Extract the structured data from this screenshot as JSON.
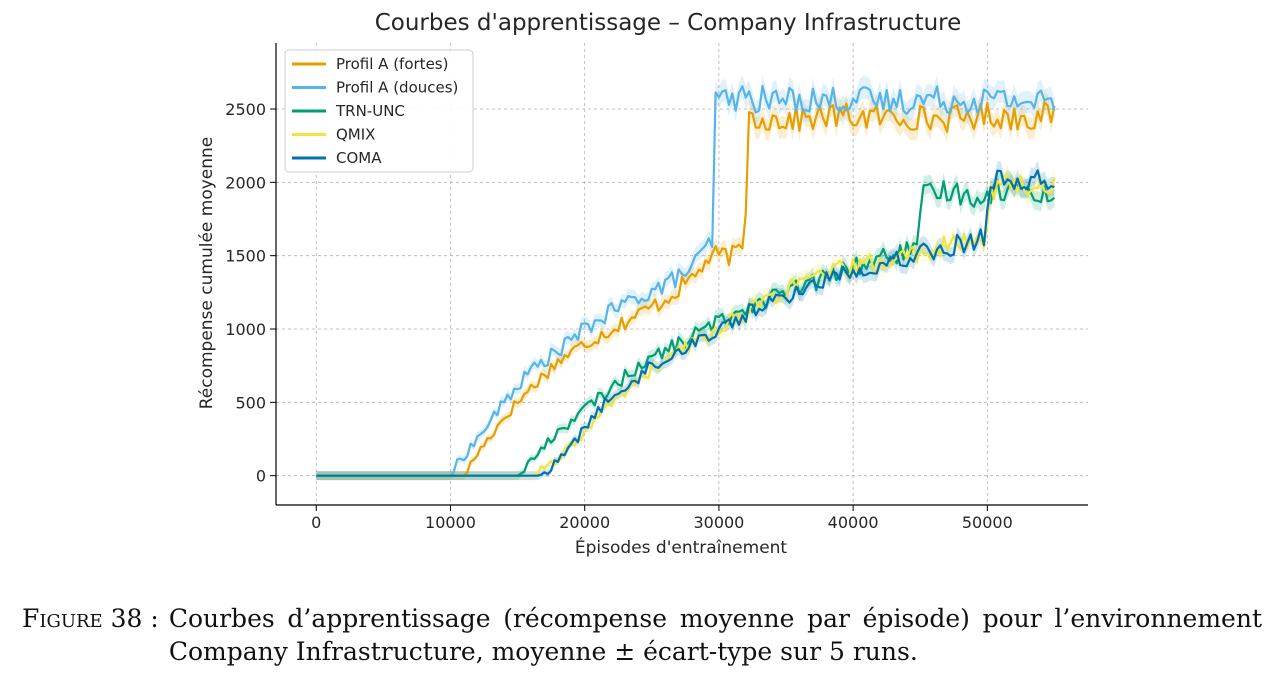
{
  "chart_data": {
    "type": "line",
    "title": "Courbes d'apprentissage – Company Infrastructure",
    "xlabel": "Épisodes d'entraînement",
    "ylabel": "Récompense cumulée moyenne",
    "xlim": [
      -3000,
      57500
    ],
    "ylim": [
      -200,
      2950
    ],
    "xticks": [
      0,
      10000,
      20000,
      30000,
      40000,
      50000
    ],
    "yticks": [
      0,
      500,
      1000,
      1500,
      2000,
      2500
    ],
    "grid": true,
    "legend_position": "top-left",
    "series": [
      {
        "name": "Profil A (fortes)",
        "color": "#E69F00",
        "x": [
          0,
          10000,
          11000,
          12000,
          14000,
          16000,
          18000,
          20000,
          22000,
          24000,
          26000,
          28000,
          29500,
          31000,
          31900,
          32200,
          34000,
          36000,
          38000,
          40000,
          42000,
          44000,
          46000,
          48000,
          50000,
          52000,
          55000
        ],
        "y": [
          0,
          0,
          0,
          150,
          400,
          600,
          780,
          900,
          1000,
          1100,
          1200,
          1350,
          1500,
          1500,
          1550,
          2450,
          2430,
          2430,
          2450,
          2450,
          2440,
          2450,
          2430,
          2440,
          2460,
          2440,
          2460
        ]
      },
      {
        "name": "Profil A (douces)",
        "color": "#56B4E9",
        "x": [
          0,
          10000,
          10500,
          12000,
          14000,
          16000,
          18000,
          20000,
          22000,
          24000,
          26000,
          28000,
          29500,
          29700,
          31000,
          34000,
          36000,
          38000,
          40000,
          42000,
          44000,
          46000,
          48000,
          50000,
          52000,
          55000
        ],
        "y": [
          0,
          0,
          80,
          250,
          500,
          720,
          850,
          1000,
          1120,
          1220,
          1300,
          1420,
          1600,
          2550,
          2580,
          2560,
          2570,
          2560,
          2570,
          2550,
          2560,
          2570,
          2560,
          2570,
          2560,
          2550
        ]
      },
      {
        "name": "TRN-UNC",
        "color": "#009E73",
        "x": [
          0,
          15000,
          16000,
          18000,
          20000,
          22000,
          24000,
          26000,
          28000,
          30000,
          32000,
          34000,
          36000,
          38000,
          40000,
          42000,
          44000,
          44900,
          45100,
          47000,
          49000,
          51000,
          53000,
          55000
        ],
        "y": [
          0,
          0,
          100,
          300,
          450,
          600,
          750,
          850,
          950,
          1050,
          1150,
          1220,
          1280,
          1350,
          1420,
          1480,
          1530,
          1570,
          1900,
          1950,
          1900,
          1950,
          1950,
          1900
        ]
      },
      {
        "name": "QMIX",
        "color": "#F0E442",
        "x": [
          0,
          16000,
          17000,
          18000,
          20000,
          22000,
          24000,
          26000,
          28000,
          30000,
          32000,
          34000,
          36000,
          38000,
          40000,
          42000,
          44000,
          46000,
          48000,
          49900,
          50100,
          52000,
          54000,
          55000
        ],
        "y": [
          0,
          0,
          50,
          100,
          300,
          500,
          650,
          780,
          900,
          1000,
          1120,
          1220,
          1300,
          1380,
          1420,
          1450,
          1500,
          1550,
          1580,
          1600,
          1950,
          2000,
          1950,
          2000
        ]
      },
      {
        "name": "COMA",
        "color": "#0072B2",
        "x": [
          0,
          16500,
          17500,
          19000,
          21000,
          23000,
          25000,
          27000,
          29000,
          31000,
          33000,
          35000,
          37000,
          39000,
          41000,
          43000,
          45000,
          47000,
          49000,
          49900,
          50100,
          52000,
          54000,
          55000
        ],
        "y": [
          0,
          0,
          50,
          200,
          450,
          600,
          750,
          850,
          950,
          1050,
          1150,
          1220,
          1300,
          1380,
          1420,
          1470,
          1520,
          1560,
          1600,
          1650,
          2000,
          2020,
          2000,
          2000
        ]
      }
    ]
  },
  "caption": {
    "label": "Figure 38 :",
    "text": "Courbes d’apprentissage (récompense moyenne par épisode) pour l’environnement Company Infrastructure, moyenne ± écart-type sur 5 runs."
  }
}
